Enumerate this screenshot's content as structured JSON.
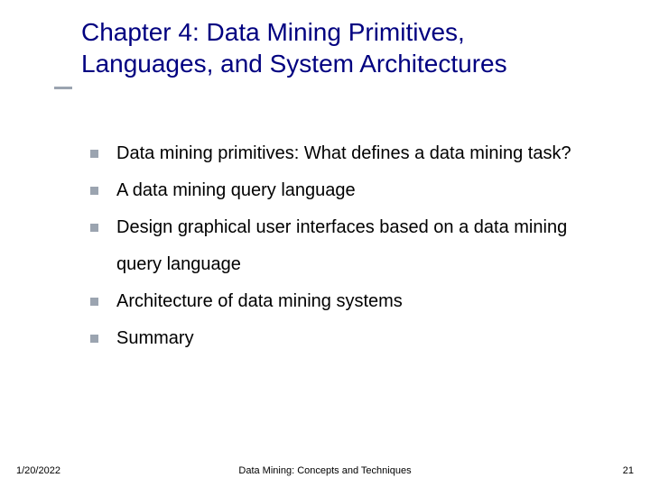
{
  "title": "Chapter 4: Data Mining Primitives, Languages, and System Architectures",
  "title_color": "#000080",
  "title_fontsize": 28,
  "underline_color": "#9ba4b0",
  "bullet_color": "#9ba4b0",
  "bullet_size": 9,
  "text_color": "#000000",
  "text_fontsize": 20,
  "bullets": [
    "Data mining primitives: What defines a data mining task?",
    "A data mining query language",
    "Design graphical user interfaces based on a data mining query language",
    "Architecture of data mining systems",
    "Summary"
  ],
  "footer": {
    "date": "1/20/2022",
    "center": "Data Mining: Concepts and Techniques",
    "page": "21"
  },
  "background_color": "#ffffff",
  "slide_width": 720,
  "slide_height": 540
}
